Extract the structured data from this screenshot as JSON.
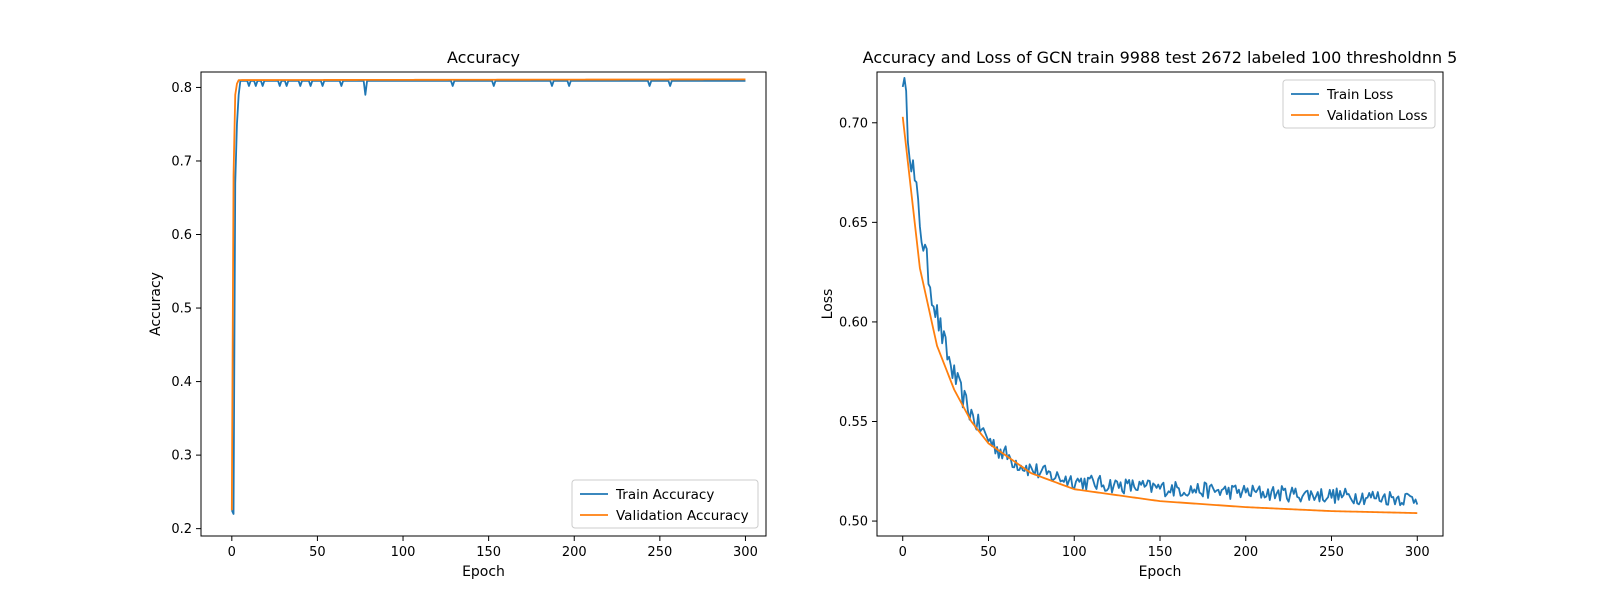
{
  "chart_data": [
    {
      "type": "line",
      "title": "Accuracy",
      "xlabel": "Epoch",
      "ylabel": "Accuracy",
      "xlim": [
        -18,
        312
      ],
      "ylim": [
        0.19,
        0.821
      ],
      "xticks": [
        0,
        50,
        100,
        150,
        200,
        250,
        300
      ],
      "yticks": [
        0.2,
        0.3,
        0.4,
        0.5,
        0.6,
        0.7,
        0.8
      ],
      "legend_position": "lower-right",
      "grid": false,
      "series": [
        {
          "name": "Train Accuracy",
          "color": "#1f77b4",
          "pattern": "accuracy-train",
          "start": 0.225,
          "plateau": 0.809,
          "dips": [
            {
              "epoch": 1,
              "value": 0.22
            },
            {
              "epoch": 2,
              "value": 0.67
            },
            {
              "epoch": 3,
              "value": 0.75
            },
            {
              "epoch": 4,
              "value": 0.79
            },
            {
              "epoch": 10,
              "value": 0.802
            },
            {
              "epoch": 14,
              "value": 0.802
            },
            {
              "epoch": 18,
              "value": 0.802
            },
            {
              "epoch": 28,
              "value": 0.802
            },
            {
              "epoch": 32,
              "value": 0.802
            },
            {
              "epoch": 40,
              "value": 0.802
            },
            {
              "epoch": 46,
              "value": 0.802
            },
            {
              "epoch": 53,
              "value": 0.802
            },
            {
              "epoch": 64,
              "value": 0.802
            },
            {
              "epoch": 78,
              "value": 0.79
            },
            {
              "epoch": 129,
              "value": 0.802
            },
            {
              "epoch": 153,
              "value": 0.802
            },
            {
              "epoch": 187,
              "value": 0.802
            },
            {
              "epoch": 197,
              "value": 0.802
            },
            {
              "epoch": 244,
              "value": 0.802
            },
            {
              "epoch": 256,
              "value": 0.802
            }
          ]
        },
        {
          "name": "Validation Accuracy",
          "color": "#ff7f0e",
          "pattern": "accuracy-val",
          "points": [
            [
              0,
              0.225
            ],
            [
              1,
              0.68
            ],
            [
              2,
              0.79
            ],
            [
              3,
              0.805
            ],
            [
              4,
              0.81
            ],
            [
              300,
              0.811
            ]
          ]
        }
      ]
    },
    {
      "type": "line",
      "title": "Accuracy and Loss of GCN train 9988 test 2672 labeled 100 thresholdnn 5",
      "xlabel": "Epoch",
      "ylabel": "Loss",
      "xlim": [
        -15,
        315
      ],
      "ylim": [
        0.4925,
        0.7255
      ],
      "xticks": [
        0,
        50,
        100,
        150,
        200,
        250,
        300
      ],
      "yticks": [
        0.5,
        0.55,
        0.6,
        0.65,
        0.7
      ],
      "legend_position": "upper-right",
      "grid": false,
      "series": [
        {
          "name": "Train Loss",
          "color": "#1f77b4",
          "pattern": "loss-train",
          "start": 0.718,
          "end": 0.51,
          "noise": 0.004
        },
        {
          "name": "Validation Loss",
          "color": "#ff7f0e",
          "pattern": "loss-val",
          "points": [
            [
              0,
              0.703
            ],
            [
              10,
              0.627
            ],
            [
              20,
              0.588
            ],
            [
              30,
              0.566
            ],
            [
              40,
              0.55
            ],
            [
              50,
              0.539
            ],
            [
              75,
              0.524
            ],
            [
              100,
              0.516
            ],
            [
              150,
              0.51
            ],
            [
              200,
              0.507
            ],
            [
              250,
              0.505
            ],
            [
              300,
              0.504
            ]
          ]
        }
      ]
    }
  ]
}
